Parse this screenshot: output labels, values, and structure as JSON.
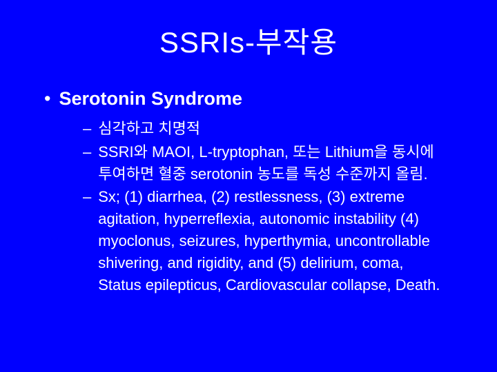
{
  "background_color": "#0000ff",
  "text_color": "#ffffff",
  "title": "SSRIs-부작용",
  "title_fontsize": 42,
  "body_fontsize_l1": 27,
  "body_fontsize_l2": 22,
  "l1_marker": "•",
  "l2_marker": "–",
  "bullets": {
    "l1": [
      {
        "text": "Serotonin Syndrome"
      }
    ],
    "l2": [
      {
        "text": "심각하고 치명적"
      },
      {
        "text": "SSRI와 MAOI, L-tryptophan, 또는 Lithium을 동시에 투여하면 혈중 serotonin 농도를 독성 수준까지 올림."
      },
      {
        "text": "Sx; (1) diarrhea, (2) restlessness, (3) extreme agitation,  hyperreflexia, autonomic instability (4) myoclonus, seizures, hyperthymia, uncontrollable shivering, and rigidity, and (5) delirium, coma, Status epilepticus, Cardiovascular collapse, Death."
      }
    ]
  }
}
